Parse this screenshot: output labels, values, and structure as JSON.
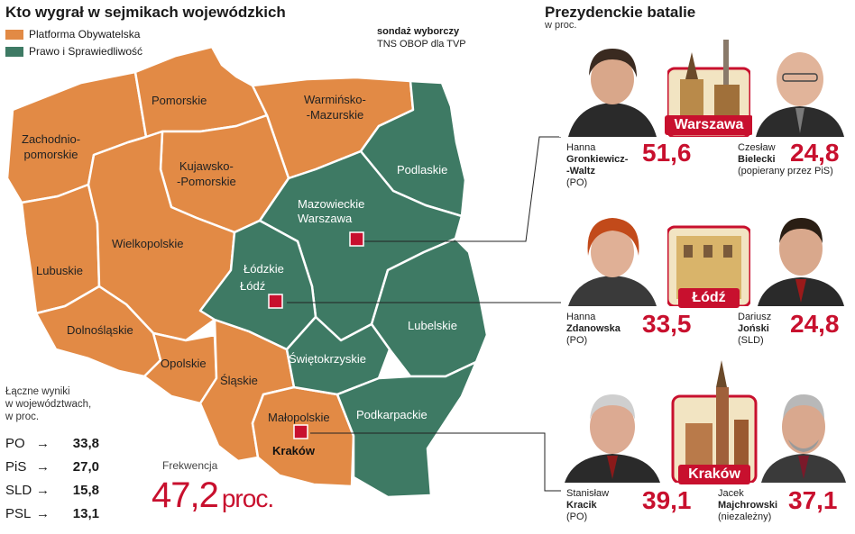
{
  "map": {
    "title": "Kto wygrał w sejmikach wojewódzkich",
    "legend": [
      {
        "label": "Platforma Obywatelska",
        "color": "#E28A45"
      },
      {
        "label": "Prawo i Sprawiedliwość",
        "color": "#3E7A64"
      }
    ],
    "poll_source": {
      "line1": "sondaż wyborczy",
      "line2": "TNS OBOP dla TVP"
    },
    "regions": {
      "zachodniopomorskie": {
        "line1": "Zachodnio-",
        "line2": "pomorskie",
        "winner": "PO"
      },
      "pomorskie": {
        "name": "Pomorskie",
        "winner": "PO"
      },
      "warminsko": {
        "line1": "Warmińsko-",
        "line2": "-Mazurskie",
        "winner": "PO"
      },
      "podlaskie": {
        "name": "Podlaskie",
        "winner": "PiS"
      },
      "kujawsko": {
        "line1": "Kujawsko-",
        "line2": "-Pomorskie",
        "winner": "PO"
      },
      "mazowieckie": {
        "name": "Mazowieckie",
        "winner": "PiS"
      },
      "lubuskie": {
        "name": "Lubuskie",
        "winner": "PO"
      },
      "wielkopolskie": {
        "name": "Wielkopolskie",
        "winner": "PO"
      },
      "lodzkie": {
        "name": "Łódzkie",
        "winner": "PiS"
      },
      "dolnoslaskie": {
        "name": "Dolnośląskie",
        "winner": "PO"
      },
      "lubelskie": {
        "name": "Lubelskie",
        "winner": "PiS"
      },
      "opolskie": {
        "name": "Opolskie",
        "winner": "PO"
      },
      "swietokrzyskie": {
        "name": "Świętokrzyskie",
        "winner": "PiS"
      },
      "slaskie": {
        "name": "Śląskie",
        "winner": "PO"
      },
      "malopolskie": {
        "name": "Małopolskie",
        "winner": "PO"
      },
      "podkarpackie": {
        "name": "Podkarpackie",
        "winner": "PiS"
      }
    },
    "cities": {
      "warszawa": "Warszawa",
      "lodz": "Łódź",
      "krakow": "Kraków"
    }
  },
  "totals": {
    "caption_line1": "Łączne wyniki",
    "caption_line2": "w województwach,",
    "caption_line3": "w proc.",
    "arrow": "→",
    "rows": [
      {
        "party": "PO",
        "value": "33,8"
      },
      {
        "party": "PiS",
        "value": "27,0"
      },
      {
        "party": "SLD",
        "value": "15,8"
      },
      {
        "party": "PSL",
        "value": "13,1"
      }
    ]
  },
  "turnout": {
    "caption": "Frekwencja",
    "value": "47,2",
    "unit": "proc."
  },
  "presidential": {
    "title": "Prezydenckie batalie",
    "subtitle": "w proc.",
    "races": [
      {
        "city": "Warszawa",
        "left": {
          "first": "Hanna",
          "last1": "Gronkiewicz-",
          "last2": "-Waltz",
          "party": "(PO)",
          "score": "51,6"
        },
        "right": {
          "first": "Czesław",
          "last1": "Bielecki",
          "party": "(popierany przez PiS)",
          "score": "24,8"
        }
      },
      {
        "city": "Łódź",
        "left": {
          "first": "Hanna",
          "last1": "Zdanowska",
          "party": "(PO)",
          "score": "33,5"
        },
        "right": {
          "first": "Dariusz",
          "last1": "Joński",
          "party": "(SLD)",
          "score": "24,8"
        }
      },
      {
        "city": "Kraków",
        "left": {
          "first": "Stanisław",
          "last1": "Kracik",
          "party": "(PO)",
          "score": "39,1"
        },
        "right": {
          "first": "Jacek",
          "last1": "Majchrowski",
          "party": "(niezależny)",
          "score": "37,1"
        }
      }
    ]
  },
  "colors": {
    "po": "#E28A45",
    "pis": "#3E7A64",
    "accent": "#C8102E"
  }
}
